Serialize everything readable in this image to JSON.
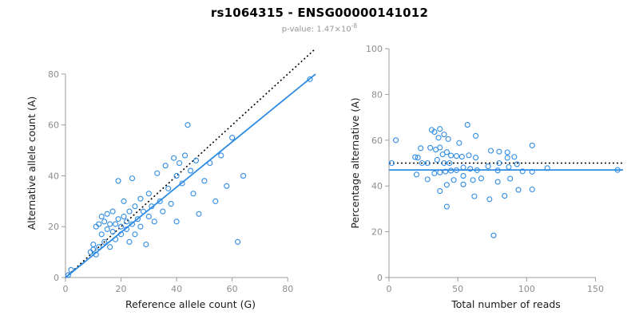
{
  "figure": {
    "title": "rs1064315 - ENSG00000141012",
    "subtitle_text": "p-value: 1.47×10",
    "subtitle_exponent": "-8"
  },
  "colors": {
    "accent_blue": "#2e8be4",
    "line_black": "#000000",
    "axis_gray": "#9b9b9b",
    "tick_text_gray": "#8e8e8e",
    "label_dark": "#1a1a1a"
  },
  "chart_data": [
    {
      "type": "scatter",
      "title": "",
      "xlabel": "Reference allele count (G)",
      "ylabel": "Alternative allele count (A)",
      "xlim": [
        0,
        90
      ],
      "ylim": [
        0,
        90
      ],
      "xticks": [
        0,
        20,
        40,
        60,
        80
      ],
      "yticks": [
        0,
        20,
        40,
        60,
        80
      ],
      "grid": false,
      "legend": "none",
      "point_color": "#2e8be4",
      "points": [
        [
          1,
          1
        ],
        [
          2,
          3
        ],
        [
          9,
          10
        ],
        [
          10,
          11
        ],
        [
          10,
          13
        ],
        [
          11,
          9
        ],
        [
          11,
          20
        ],
        [
          12,
          12
        ],
        [
          12,
          21
        ],
        [
          13,
          24
        ],
        [
          13,
          17
        ],
        [
          14,
          14
        ],
        [
          14,
          22
        ],
        [
          15,
          19
        ],
        [
          15,
          25
        ],
        [
          16,
          12
        ],
        [
          16,
          21
        ],
        [
          17,
          18
        ],
        [
          17,
          26
        ],
        [
          18,
          21
        ],
        [
          18,
          15
        ],
        [
          19,
          23
        ],
        [
          19,
          38
        ],
        [
          20,
          20
        ],
        [
          20,
          17
        ],
        [
          21,
          24
        ],
        [
          21,
          30
        ],
        [
          22,
          19
        ],
        [
          22,
          22
        ],
        [
          23,
          26
        ],
        [
          23,
          14
        ],
        [
          24,
          21
        ],
        [
          24,
          39
        ],
        [
          25,
          17
        ],
        [
          25,
          28
        ],
        [
          26,
          23
        ],
        [
          27,
          20
        ],
        [
          27,
          31
        ],
        [
          28,
          26
        ],
        [
          29,
          13
        ],
        [
          30,
          24
        ],
        [
          30,
          33
        ],
        [
          31,
          28
        ],
        [
          32,
          22
        ],
        [
          33,
          41
        ],
        [
          34,
          30
        ],
        [
          35,
          26
        ],
        [
          36,
          44
        ],
        [
          37,
          35
        ],
        [
          38,
          29
        ],
        [
          39,
          47
        ],
        [
          40,
          40
        ],
        [
          40,
          22
        ],
        [
          41,
          45
        ],
        [
          42,
          37
        ],
        [
          43,
          48
        ],
        [
          44,
          60
        ],
        [
          45,
          42
        ],
        [
          46,
          33
        ],
        [
          47,
          46
        ],
        [
          48,
          25
        ],
        [
          50,
          38
        ],
        [
          52,
          45
        ],
        [
          54,
          30
        ],
        [
          56,
          48
        ],
        [
          58,
          36
        ],
        [
          60,
          55
        ],
        [
          62,
          14
        ],
        [
          64,
          40
        ],
        [
          88,
          78
        ]
      ],
      "lines": [
        {
          "name": "identity-line",
          "style": "dotted",
          "color": "#000000",
          "x1": 0,
          "y1": 0,
          "x2": 90,
          "y2": 90
        },
        {
          "name": "regression-line",
          "style": "solid",
          "color": "#2e8be4",
          "x1": 0,
          "y1": 0,
          "x2": 90,
          "y2": 80
        }
      ]
    },
    {
      "type": "scatter",
      "title": "",
      "xlabel": "Total number of reads",
      "ylabel": "Percentage alternative (A)",
      "xlim": [
        0,
        170
      ],
      "ylim": [
        0,
        100
      ],
      "xticks": [
        0,
        50,
        100,
        150
      ],
      "yticks": [
        0,
        20,
        40,
        60,
        80,
        100
      ],
      "grid": false,
      "legend": "none",
      "point_color": "#2e8be4",
      "points": [
        [
          2,
          50
        ],
        [
          5,
          60
        ],
        [
          19,
          52.6
        ],
        [
          21,
          52.4
        ],
        [
          23,
          56.5
        ],
        [
          20,
          45
        ],
        [
          31,
          64.5
        ],
        [
          24,
          50
        ],
        [
          33,
          63.6
        ],
        [
          37,
          64.9
        ],
        [
          30,
          56.7
        ],
        [
          28,
          50
        ],
        [
          36,
          61.1
        ],
        [
          34,
          55.9
        ],
        [
          40,
          62.5
        ],
        [
          28,
          42.9
        ],
        [
          37,
          56.8
        ],
        [
          35,
          51.4
        ],
        [
          43,
          60.5
        ],
        [
          39,
          53.8
        ],
        [
          33,
          45.5
        ],
        [
          42,
          54.8
        ],
        [
          57,
          66.7
        ],
        [
          40,
          50
        ],
        [
          37,
          45.9
        ],
        [
          45,
          53.3
        ],
        [
          51,
          58.8
        ],
        [
          41,
          46.3
        ],
        [
          44,
          50
        ],
        [
          49,
          53.1
        ],
        [
          37,
          37.8
        ],
        [
          45,
          46.7
        ],
        [
          63,
          61.9
        ],
        [
          42,
          40.5
        ],
        [
          53,
          52.8
        ],
        [
          49,
          46.9
        ],
        [
          47,
          42.6
        ],
        [
          58,
          53.4
        ],
        [
          54,
          48.1
        ],
        [
          42,
          31
        ],
        [
          54,
          44.4
        ],
        [
          63,
          52.4
        ],
        [
          59,
          47.5
        ],
        [
          54,
          40.7
        ],
        [
          74,
          55.4
        ],
        [
          64,
          46.9
        ],
        [
          61,
          42.6
        ],
        [
          80,
          55
        ],
        [
          72,
          48.6
        ],
        [
          67,
          43.3
        ],
        [
          86,
          54.7
        ],
        [
          80,
          50
        ],
        [
          62,
          35.5
        ],
        [
          86,
          52.3
        ],
        [
          79,
          46.8
        ],
        [
          91,
          52.7
        ],
        [
          104,
          57.7
        ],
        [
          87,
          48.3
        ],
        [
          79,
          41.8
        ],
        [
          93,
          49.5
        ],
        [
          73,
          34.2
        ],
        [
          88,
          43.2
        ],
        [
          97,
          46.4
        ],
        [
          84,
          35.7
        ],
        [
          104,
          46.2
        ],
        [
          94,
          38.3
        ],
        [
          115,
          47.8
        ],
        [
          76,
          18.4
        ],
        [
          104,
          38.5
        ],
        [
          166,
          47
        ]
      ],
      "lines": [
        {
          "name": "expected-50pct-line",
          "style": "dotted",
          "color": "#000000",
          "x1": 0,
          "y1": 50,
          "x2": 170,
          "y2": 50
        },
        {
          "name": "fitted-percentage-line",
          "style": "solid",
          "color": "#2e8be4",
          "x1": 0,
          "y1": 47,
          "x2": 170,
          "y2": 47
        }
      ]
    }
  ]
}
